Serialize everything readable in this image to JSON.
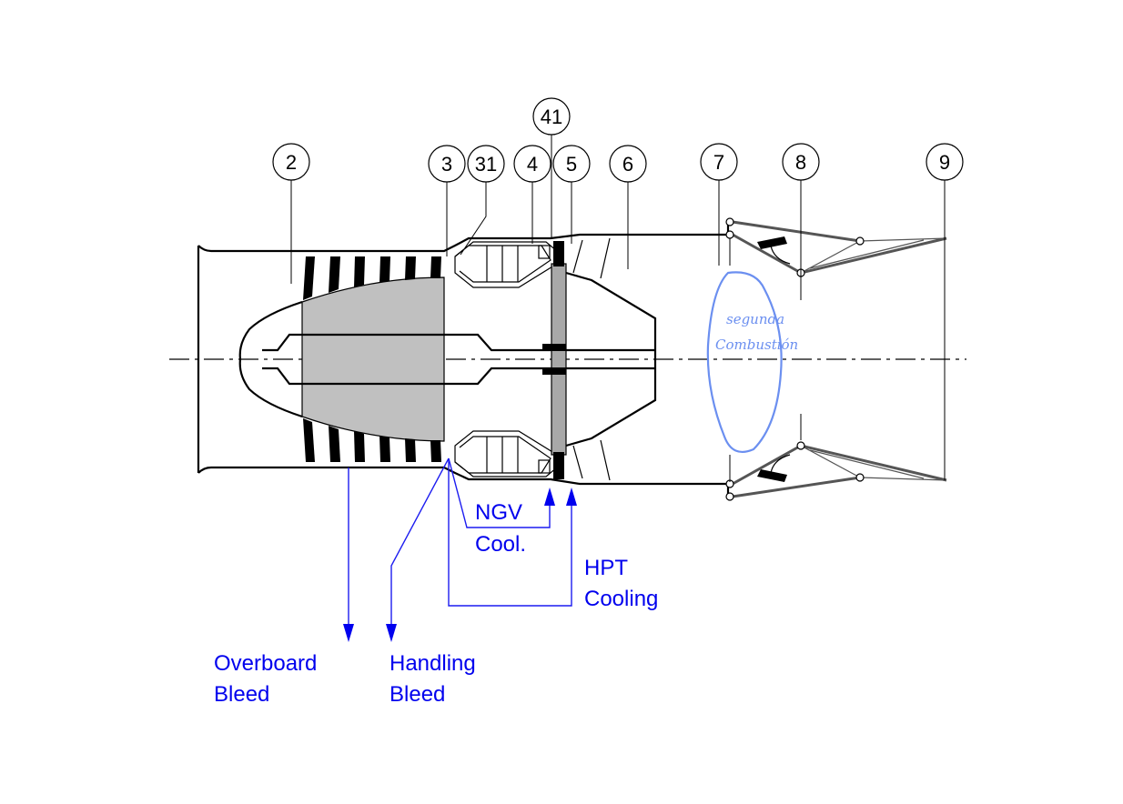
{
  "stations": [
    {
      "id": "stn-2",
      "label": "2"
    },
    {
      "id": "stn-3",
      "label": "3"
    },
    {
      "id": "stn-31",
      "label": "31"
    },
    {
      "id": "stn-4",
      "label": "4"
    },
    {
      "id": "stn-41",
      "label": "41"
    },
    {
      "id": "stn-5",
      "label": "5"
    },
    {
      "id": "stn-6",
      "label": "6"
    },
    {
      "id": "stn-7",
      "label": "7"
    },
    {
      "id": "stn-8",
      "label": "8"
    },
    {
      "id": "stn-9",
      "label": "9"
    }
  ],
  "annotations": {
    "ngv_line1": "NGV",
    "ngv_line2": "Cool.",
    "hpt_line1": "HPT",
    "hpt_line2": "Cooling",
    "overboard_line1": "Overboard",
    "overboard_line2": "Bleed",
    "handling_line1": "Handling",
    "handling_line2": "Bleed"
  },
  "handwritten_note": {
    "line1": "segunda",
    "line2": "Combustión"
  },
  "colors": {
    "annotation_blue": "#0000ee",
    "handwriting_blue": "#6b8ff0",
    "compressor_gray": "#c0c0c0",
    "turbine_gray": "#a8a8a8"
  }
}
